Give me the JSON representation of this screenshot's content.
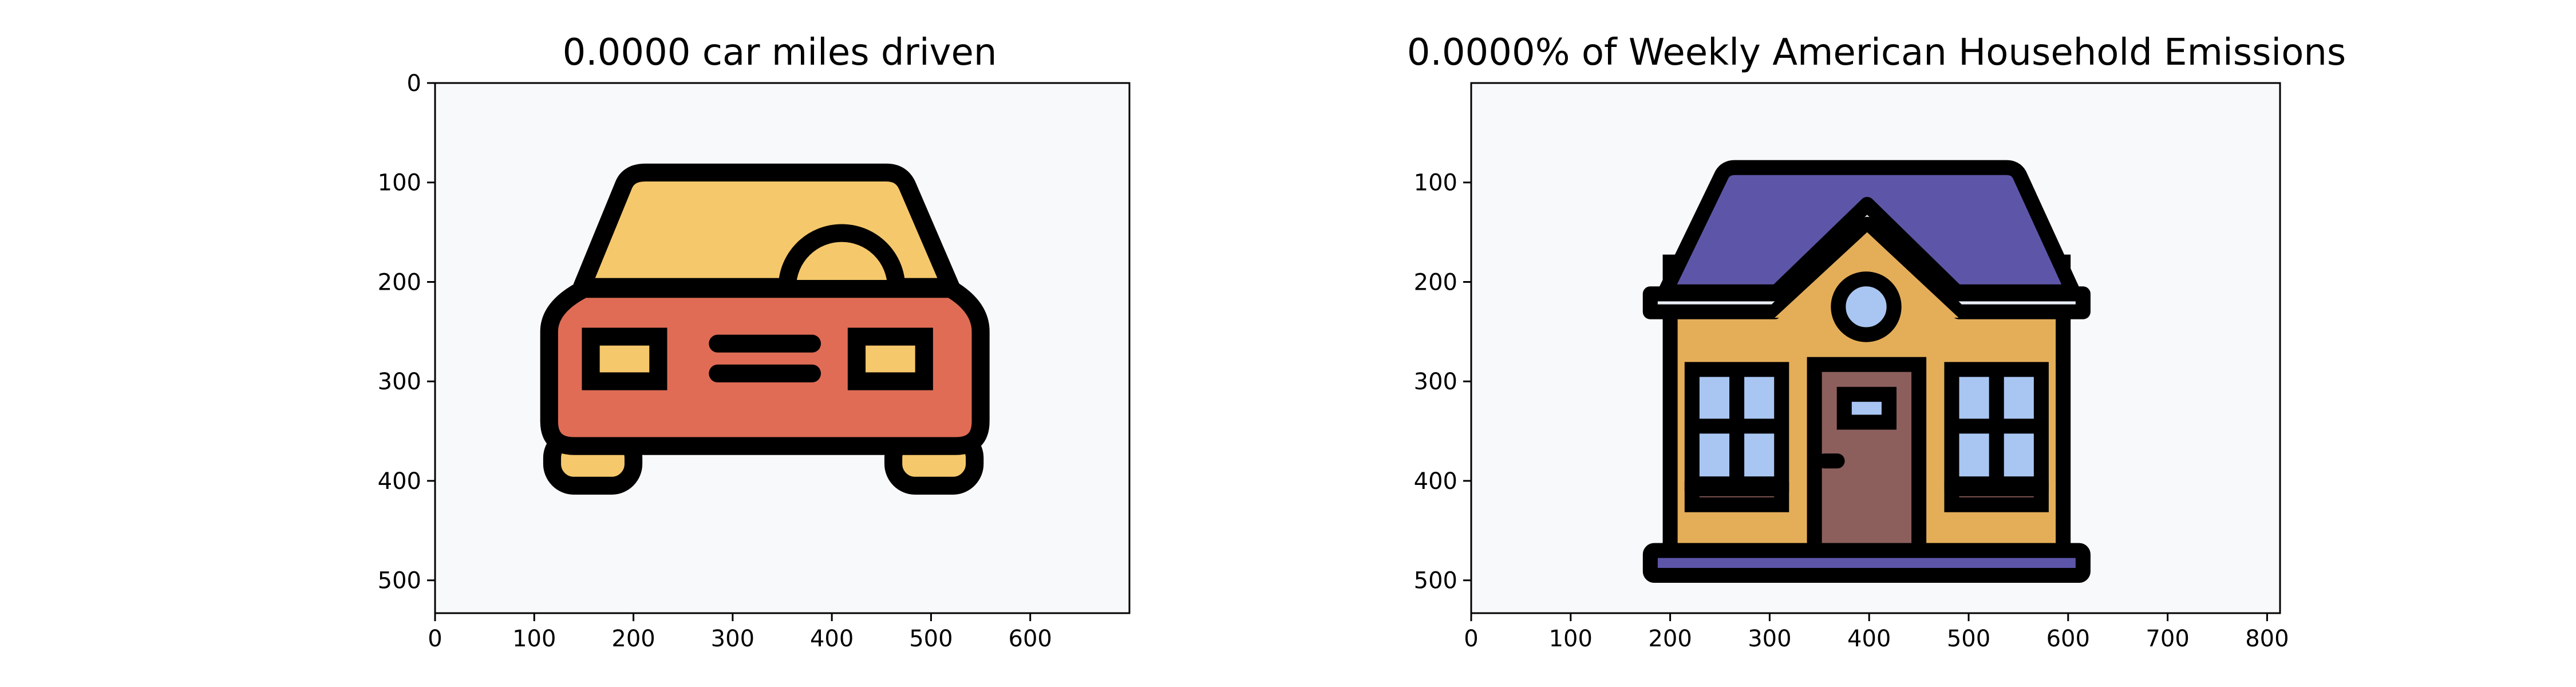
{
  "chart_data": [
    {
      "type": "image",
      "title": "0.0000 car miles driven",
      "image_icon": "car-icon",
      "xlim": [
        0,
        700
      ],
      "ylim": [
        533,
        0
      ],
      "xticks": [
        0,
        100,
        200,
        300,
        400,
        500,
        600
      ],
      "yticks": [
        0,
        100,
        200,
        300,
        400,
        500
      ],
      "background": "#f8f9fb",
      "colors": {
        "body": "#e06c55",
        "cabin": "#f5c86b",
        "outline": "#000000"
      }
    },
    {
      "type": "image",
      "title": "0.0000% of Weekly American Household Emissions",
      "image_icon": "house-icon",
      "xlim": [
        0,
        813
      ],
      "ylim": [
        533,
        0
      ],
      "xticks": [
        0,
        100,
        200,
        300,
        400,
        500,
        600,
        700,
        800
      ],
      "yticks": [
        100,
        200,
        300,
        400,
        500
      ],
      "background": "#f8f9fb",
      "colors": {
        "roof": "#5d56a8",
        "wall": "#e4ae58",
        "window": "#a9c6f2",
        "door": "#8c5f5d",
        "snow": "#e8edf6",
        "outline": "#000000"
      }
    }
  ]
}
